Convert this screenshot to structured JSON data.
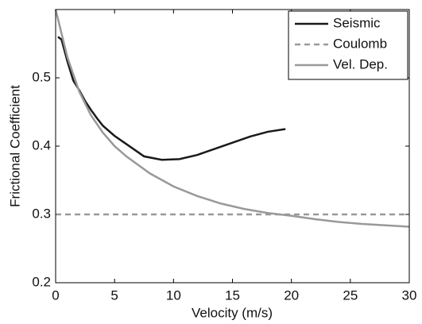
{
  "chart_data": {
    "type": "line",
    "xlabel": "Velocity (m/s)",
    "ylabel": "Frictional Coefficient",
    "xlim": [
      0,
      30
    ],
    "ylim": [
      0.2,
      0.6
    ],
    "xticks": [
      0,
      5,
      10,
      15,
      20,
      25,
      30
    ],
    "yticks": [
      0.2,
      0.3,
      0.4,
      0.5
    ],
    "legend": "upper right",
    "series": [
      {
        "name": "Seismic",
        "color": "#1a1a1a",
        "dash": false,
        "x": [
          0.2,
          0.5,
          1,
          1.5,
          2,
          2.5,
          3,
          3.5,
          4,
          5,
          6.5,
          7.5,
          9,
          10.5,
          12,
          13.5,
          15,
          16.5,
          18,
          19.5
        ],
        "values": [
          0.56,
          0.556,
          0.524,
          0.496,
          0.482,
          0.466,
          0.453,
          0.441,
          0.43,
          0.415,
          0.397,
          0.385,
          0.38,
          0.381,
          0.387,
          0.396,
          0.405,
          0.414,
          0.421,
          0.425
        ]
      },
      {
        "name": "Coulomb",
        "color": "#999999",
        "dash": true,
        "x": [
          0,
          30
        ],
        "values": [
          0.3,
          0.3
        ]
      },
      {
        "name": "Vel. Dep.",
        "color": "#999999",
        "dash": false,
        "x": [
          0,
          1,
          2,
          3,
          4,
          5,
          6,
          8,
          10,
          12,
          14,
          16,
          18,
          20,
          22,
          24,
          26,
          28,
          30
        ],
        "values": [
          0.6,
          0.53,
          0.48,
          0.445,
          0.42,
          0.4,
          0.385,
          0.36,
          0.341,
          0.327,
          0.316,
          0.308,
          0.302,
          0.298,
          0.293,
          0.289,
          0.286,
          0.284,
          0.282
        ]
      }
    ]
  }
}
